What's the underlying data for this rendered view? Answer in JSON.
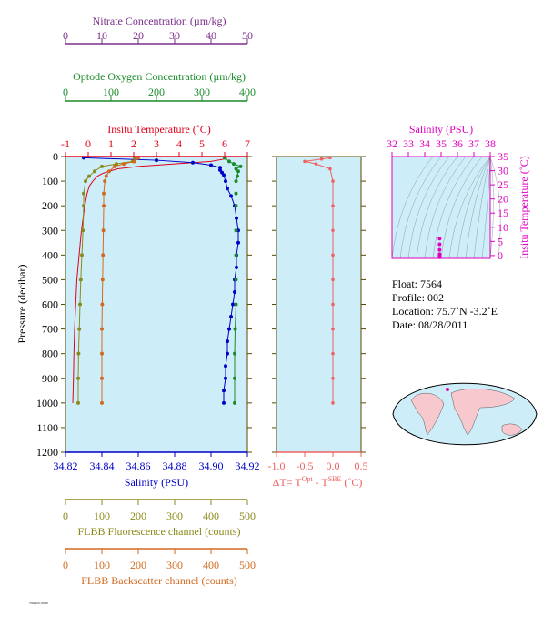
{
  "colors": {
    "nitrate": "#7b2d8b",
    "oxygen": "#1a8a2a",
    "temperature": "#e0001b",
    "salinity": "#0000c8",
    "fluorescence": "#8a8a1a",
    "backscatter": "#d2691e",
    "delta": "#f06060",
    "ts_axis": "#e000c0",
    "panel_bg": "#cdeef8",
    "frame": "#5a4a00"
  },
  "axes": {
    "nitrate": {
      "title": "Nitrate Concentration (µm/kg)",
      "ticks": [
        "0",
        "10",
        "20",
        "30",
        "40",
        "50"
      ]
    },
    "oxygen": {
      "title": "Optode Oxygen Concentration (µm/kg)",
      "ticks": [
        "0",
        "100",
        "200",
        "300",
        "400"
      ]
    },
    "temperature": {
      "title": "Insitu Temperature (˚C)",
      "ticks": [
        "-1",
        "0",
        "1",
        "2",
        "3",
        "4",
        "5",
        "6",
        "7"
      ]
    },
    "pressure": {
      "title": "Pressure (decibar)",
      "ticks": [
        "0",
        "100",
        "200",
        "300",
        "400",
        "500",
        "600",
        "700",
        "800",
        "900",
        "1000",
        "1100",
        "1200"
      ]
    },
    "salinity": {
      "title": "Salinity (PSU)",
      "ticks": [
        "34.82",
        "34.84",
        "34.86",
        "34.88",
        "34.90",
        "34.92"
      ]
    },
    "delta": {
      "title": "ΔT= T",
      "sup1": "Opt",
      "mid": " - T",
      "sup2": "SBE",
      "end": " (˚C)",
      "ticks": [
        "-1.0",
        "-0.5",
        "0.0",
        "0.5"
      ]
    },
    "fluorescence": {
      "title": "FLBB Fluorescence channel (counts)",
      "ticks": [
        "0",
        "100",
        "200",
        "300",
        "400",
        "500"
      ]
    },
    "backscatter": {
      "title": "FLBB Backscatter channel (counts)",
      "ticks": [
        "0",
        "100",
        "200",
        "300",
        "400",
        "500"
      ]
    },
    "ts_salinity": {
      "title": "Salinity (PSU)",
      "ticks": [
        "32",
        "33",
        "34",
        "35",
        "36",
        "37",
        "38"
      ]
    },
    "ts_temperature": {
      "title": "Insitu Temperature (˚C)",
      "ticks": [
        "0",
        "5",
        "10",
        "15",
        "20",
        "25",
        "30",
        "35"
      ]
    }
  },
  "info": {
    "float": "Float:  7564",
    "profile": "Profile:  002",
    "location": "Location:  75.7˚N  -3.2˚E",
    "date": "Date:  08/28/2011"
  },
  "chart_data": {
    "type": "line",
    "y_axis": "pressure",
    "ylim": [
      1200,
      0
    ],
    "series": [
      {
        "name": "Insitu Temperature",
        "axis": "temperature",
        "xlim": [
          -1,
          7
        ],
        "pressure": [
          5,
          10,
          20,
          30,
          40,
          50,
          60,
          70,
          80,
          100,
          120,
          150,
          200,
          300,
          400,
          500,
          600,
          700,
          800,
          900,
          1000
        ],
        "values": [
          6.1,
          6.0,
          5.4,
          3.8,
          2.2,
          1.3,
          0.9,
          0.6,
          0.4,
          0.2,
          0.05,
          -0.05,
          -0.15,
          -0.3,
          -0.4,
          -0.5,
          -0.55,
          -0.6,
          -0.63,
          -0.65,
          -0.68
        ]
      },
      {
        "name": "Salinity",
        "axis": "salinity",
        "xlim": [
          34.82,
          34.92
        ],
        "pressure": [
          5,
          15,
          25,
          35,
          45,
          55,
          65,
          75,
          100,
          130,
          160,
          200,
          250,
          300,
          350,
          400,
          450,
          500,
          550,
          600,
          650,
          700,
          750,
          800,
          850,
          900,
          950,
          1000
        ],
        "values": [
          34.83,
          34.87,
          34.89,
          34.9,
          34.905,
          34.905,
          34.906,
          34.907,
          34.908,
          34.909,
          34.911,
          34.913,
          34.914,
          34.915,
          34.915,
          34.914,
          34.914,
          34.913,
          34.913,
          34.912,
          34.911,
          34.91,
          34.909,
          34.909,
          34.908,
          34.908,
          34.907,
          34.907
        ]
      },
      {
        "name": "Optode Oxygen Concentration",
        "axis": "oxygen",
        "xlim": [
          0,
          400
        ],
        "pressure": [
          5,
          20,
          30,
          40,
          50,
          60,
          80,
          100,
          150,
          200,
          300,
          400,
          500,
          600,
          700,
          800,
          900,
          1000
        ],
        "values": [
          350,
          360,
          370,
          385,
          375,
          380,
          378,
          375,
          375,
          375,
          375,
          375,
          375,
          375,
          373,
          372,
          372,
          372
        ]
      },
      {
        "name": "FLBB Fluorescence channel",
        "axis": "fluorescence",
        "xlim": [
          0,
          500
        ],
        "pressure": [
          5,
          20,
          30,
          40,
          60,
          80,
          100,
          150,
          200,
          300,
          400,
          500,
          600,
          700,
          800,
          900,
          1000
        ],
        "values": [
          190,
          185,
          140,
          100,
          80,
          65,
          55,
          50,
          50,
          48,
          45,
          42,
          40,
          38,
          36,
          35,
          35
        ]
      },
      {
        "name": "FLBB Backscatter channel",
        "axis": "backscatter",
        "xlim": [
          0,
          500
        ],
        "pressure": [
          5,
          20,
          30,
          40,
          60,
          80,
          100,
          150,
          200,
          300,
          400,
          500,
          600,
          700,
          800,
          900,
          1000
        ],
        "values": [
          200,
          190,
          160,
          135,
          120,
          112,
          108,
          105,
          105,
          104,
          103,
          102,
          101,
          100,
          100,
          100,
          100
        ]
      },
      {
        "name": "ΔT",
        "axis": "delta",
        "xlim": [
          -1,
          0.5
        ],
        "pressure": [
          5,
          10,
          20,
          30,
          50,
          100,
          200,
          300,
          400,
          500,
          600,
          700,
          800,
          900,
          1000
        ],
        "values": [
          -0.05,
          -0.2,
          -0.5,
          -0.3,
          -0.05,
          0,
          0,
          0,
          0,
          0,
          0,
          0,
          0,
          0,
          0
        ]
      }
    ],
    "ts": {
      "xlim": [
        32,
        38
      ],
      "ylim": [
        -1,
        35
      ],
      "salinity": [
        34.91,
        34.91,
        34.91,
        34.91,
        34.91,
        34.91
      ],
      "temperature": [
        6.0,
        4.0,
        2.0,
        0.5,
        0,
        -0.6
      ]
    }
  }
}
